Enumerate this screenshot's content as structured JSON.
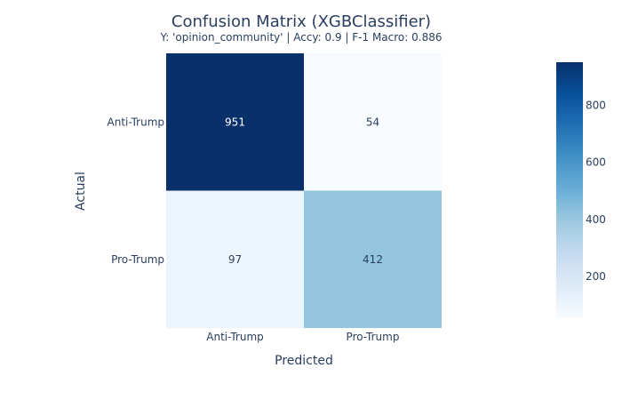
{
  "chart_data": {
    "type": "heatmap",
    "title": "Confusion Matrix (XGBClassifier)",
    "subtitle": "Y: 'opinion_community' | Accy: 0.9 | F-1 Macro: 0.886",
    "xlabel": "Predicted",
    "ylabel": "Actual",
    "x_categories": [
      "Anti-Trump",
      "Pro-Trump"
    ],
    "y_categories": [
      "Anti-Trump",
      "Pro-Trump"
    ],
    "z": [
      [
        951,
        54
      ],
      [
        97,
        412
      ]
    ],
    "colorscale": "Blues",
    "colorbar": {
      "min": 54,
      "max": 951,
      "ticks": [
        200,
        400,
        600,
        800
      ]
    }
  }
}
